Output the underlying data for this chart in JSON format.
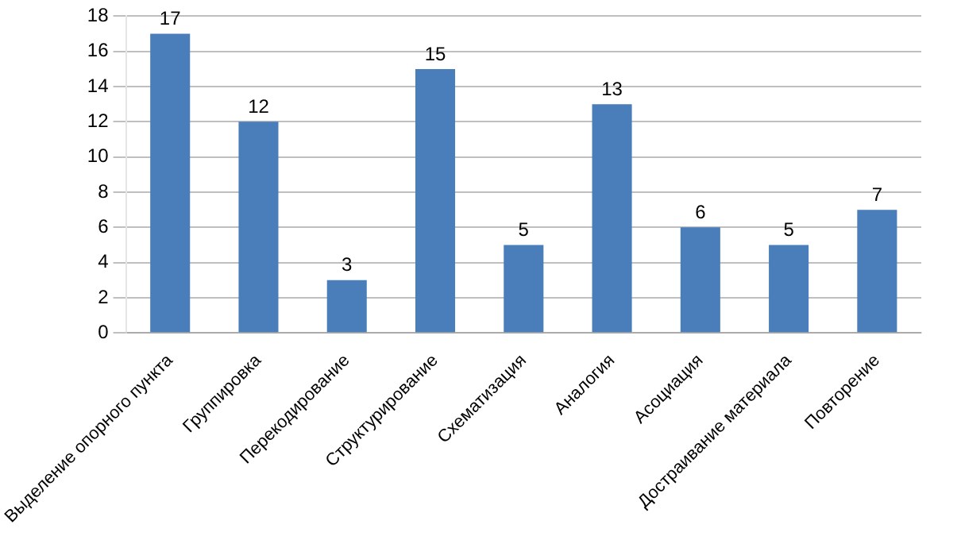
{
  "chart_data": {
    "type": "bar",
    "categories": [
      "Выделение опорного пункта",
      "Группировка",
      "Перекодирование",
      "Структурирование",
      "Схематизация",
      "Аналогия",
      "Асоциация",
      "Достраивание материала",
      "Повторение"
    ],
    "values": [
      17,
      12,
      3,
      15,
      5,
      13,
      6,
      5,
      7
    ],
    "color": "#4a7ebb",
    "ylim": [
      0,
      18
    ],
    "yticks": [
      0,
      2,
      4,
      6,
      8,
      10,
      12,
      14,
      16,
      18
    ],
    "grid": "y",
    "data_labels": true
  }
}
